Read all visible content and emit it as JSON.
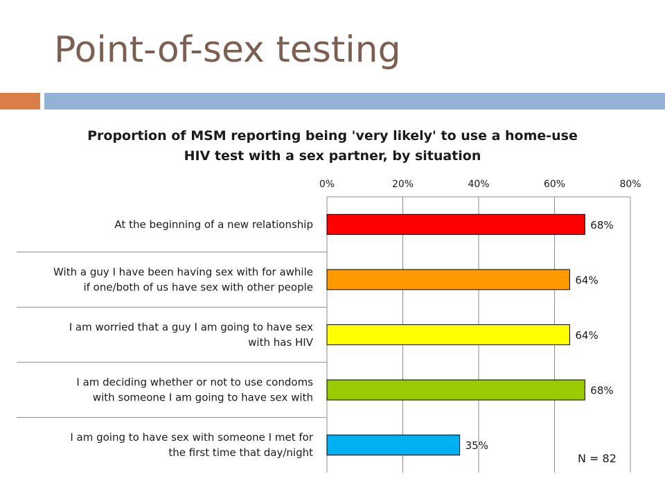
{
  "slide": {
    "title": "Point-of-sex testing",
    "accent_colors": [
      "#d97e47",
      "#92b3d5"
    ]
  },
  "chart_data": {
    "type": "bar",
    "orientation": "horizontal",
    "title": "Proportion of MSM reporting being 'very likely' to use a home-use HIV test with a sex partner, by situation",
    "title_lines": [
      "Proportion of MSM reporting being 'very likely' to use a home-use",
      "HIV test with a sex partner, by situation"
    ],
    "categories": [
      "At the beginning of a new relationship",
      "With a guy I have been having sex with for awhile if one/both of us have sex with other people",
      "I am worried that a guy I am going to have sex with has HIV",
      "I am deciding whether or not to use condoms with someone I am going to have sex with",
      "I am going to have sex with someone I met for the first time that day/night"
    ],
    "category_lines": [
      [
        "At the beginning of a new relationship"
      ],
      [
        "With a guy I have been having sex with for awhile",
        "if one/both of us have sex with other people"
      ],
      [
        "I am worried that a guy I am going to have sex",
        "with has HIV"
      ],
      [
        "I am deciding whether or not to use condoms",
        "with someone I am going to have sex with"
      ],
      [
        "I am going to have sex with someone I met for",
        "the first time that day/night"
      ]
    ],
    "values": [
      68,
      64,
      64,
      68,
      35
    ],
    "value_labels": [
      "68%",
      "64%",
      "64%",
      "68%",
      "35%"
    ],
    "bar_colors": [
      "#ff0000",
      "#ff9900",
      "#ffff00",
      "#99cc00",
      "#00b0f0"
    ],
    "x_ticks": [
      "0%",
      "20%",
      "40%",
      "60%",
      "80%"
    ],
    "x_tick_values": [
      0,
      20,
      40,
      60,
      80
    ],
    "xlim": [
      0,
      80
    ],
    "axis_position": "top",
    "grid": true,
    "annotation": "N = 82"
  }
}
